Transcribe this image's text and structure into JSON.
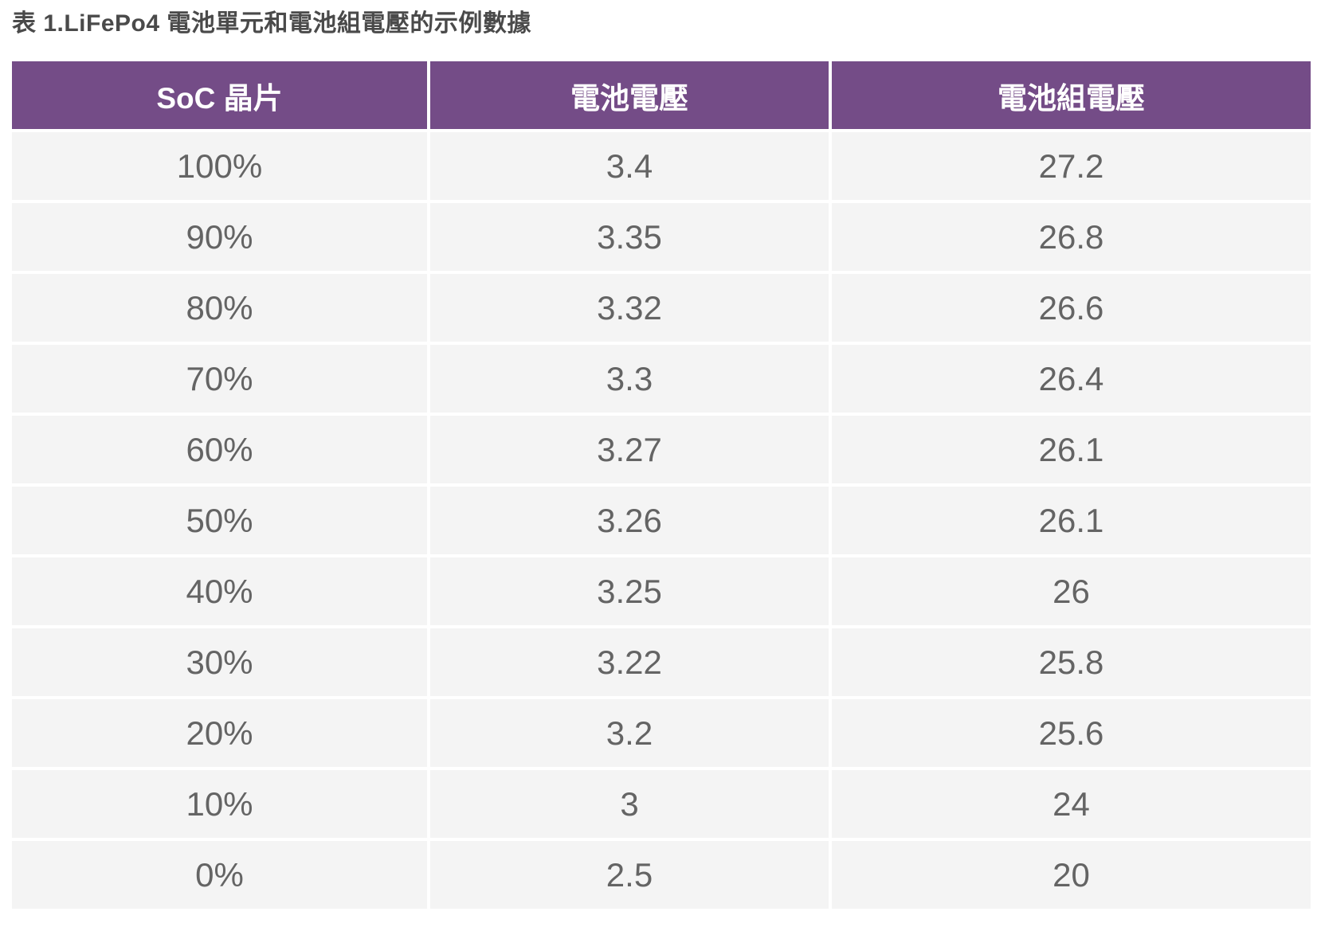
{
  "caption": "表 1.LiFePo4 電池單元和電池組電壓的示例數據",
  "colors": {
    "header_bg": "#744c87",
    "header_text": "#ffffff",
    "row_bg": "#f4f4f4",
    "cell_text": "#646464",
    "caption_text": "#4a4a4a",
    "gutter": "#ffffff",
    "page_bg": "#ffffff"
  },
  "table": {
    "columns": [
      "SoC 晶片",
      "電池電壓",
      "電池組電壓"
    ],
    "rows": [
      [
        "100%",
        "3.4",
        "27.2"
      ],
      [
        "90%",
        "3.35",
        "26.8"
      ],
      [
        "80%",
        "3.32",
        "26.6"
      ],
      [
        "70%",
        "3.3",
        "26.4"
      ],
      [
        "60%",
        "3.27",
        "26.1"
      ],
      [
        "50%",
        "3.26",
        "26.1"
      ],
      [
        "40%",
        "3.25",
        "26"
      ],
      [
        "30%",
        "3.22",
        "25.8"
      ],
      [
        "20%",
        "3.2",
        "25.6"
      ],
      [
        "10%",
        "3",
        "24"
      ],
      [
        "0%",
        "2.5",
        "20"
      ]
    ]
  }
}
